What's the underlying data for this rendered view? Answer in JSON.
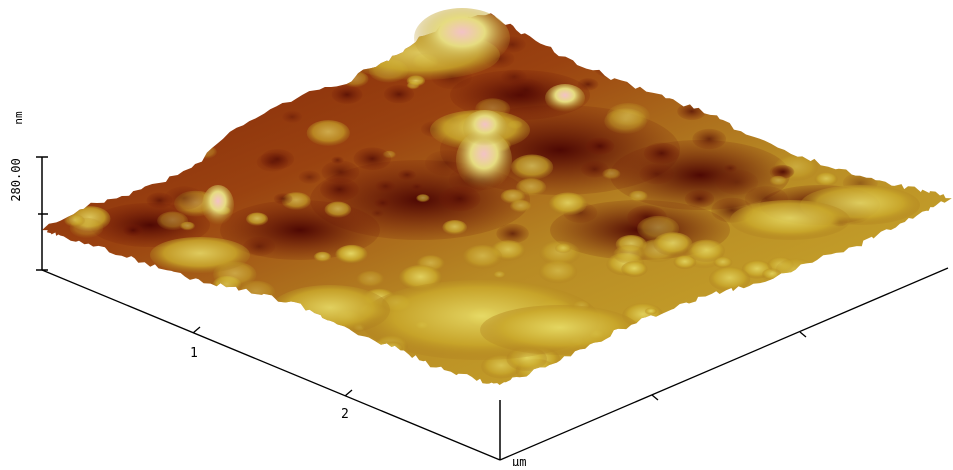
{
  "figure": {
    "type": "afm-3d-surface",
    "z_axis": {
      "unit_label": "nm",
      "scale_label": "280.00"
    },
    "xy_axis": {
      "unit_label": "µm",
      "tick_labels": [
        "1",
        "2"
      ]
    },
    "colors": {
      "low": "#5a0b05",
      "mid_low": "#8a2a0e",
      "mid": "#b4741e",
      "mid_high": "#d8c432",
      "high": "#e8e27a",
      "peak": "#f0b8bc"
    }
  }
}
